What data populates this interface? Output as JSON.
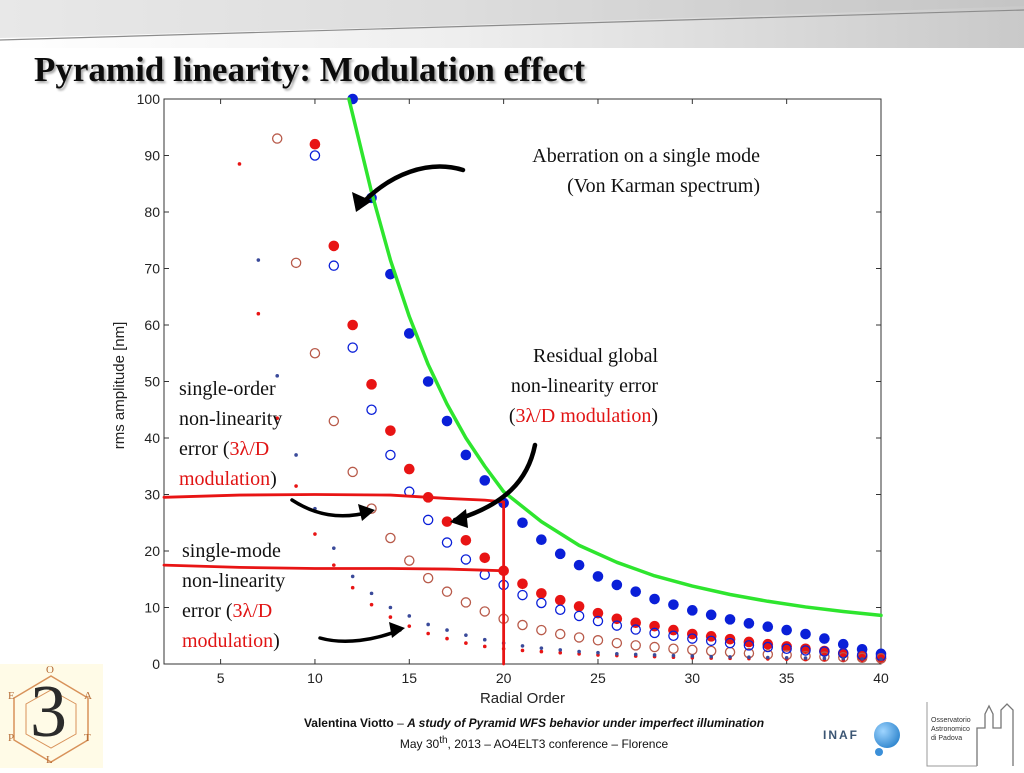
{
  "slide": {
    "title": "Pyramid linearity: Modulation effect"
  },
  "annotations": {
    "top_line1": "Aberration on a single mode",
    "top_line2": "(Von Karman spectrum)",
    "residual_line1": "Residual global",
    "residual_line2": "non-linearity error",
    "residual_open": "(",
    "residual_mod": "3λ/D modulation",
    "residual_close": ")",
    "single_order_line1": "single-order",
    "single_order_line2": "non-linearity",
    "single_order_prefix": "error (",
    "single_order_mod_a": "3λ/D",
    "single_order_mod_b": "modulation",
    "single_order_close": ")",
    "single_mode_line1": "single-mode",
    "single_mode_line2": "non-linearity",
    "single_mode_prefix": "error (",
    "single_mode_mod_a": "3λ/D",
    "single_mode_mod_b": "modulation",
    "single_mode_close": ")"
  },
  "footer": {
    "author": "Valentina Viotto",
    "dash": " – ",
    "talk_title": "A study of Pyramid WFS behavior under imperfect illumination",
    "date_prefix": "May 30",
    "date_sup": "th",
    "date_rest": ", 2013 – AO4ELT3 conference – Florence"
  },
  "logos": {
    "big_numeral": "3",
    "letters": [
      "O",
      "A",
      "L",
      "E",
      "P",
      "T"
    ],
    "inaf": "INAF",
    "observatory_line1": "Osservatorio",
    "observatory_line2": "Astronomico",
    "observatory_line3": "di Padova"
  },
  "colors": {
    "blue": "#0a1fd8",
    "red": "#e81414",
    "brown": "#b85a4a",
    "navy": "#3a4a9a",
    "green": "#2ee52e",
    "axis": "#333333"
  },
  "chart_data": {
    "type": "scatter",
    "xlabel": "Radial Order",
    "ylabel": "rms amplitude [nm]",
    "xlim": [
      2,
      40
    ],
    "ylim": [
      0,
      100
    ],
    "xticks": [
      5,
      10,
      15,
      20,
      25,
      30,
      35,
      40
    ],
    "yticks": [
      0,
      10,
      20,
      30,
      40,
      50,
      60,
      70,
      80,
      90,
      100
    ],
    "grid": false,
    "series": [
      {
        "key": "aberration",
        "style": "filled-large",
        "color": "blue",
        "x": [
          12,
          13,
          14,
          15,
          16,
          17,
          18,
          19,
          20,
          21,
          22,
          23,
          24,
          25,
          26,
          27,
          28,
          29,
          30,
          31,
          32,
          33,
          34,
          35,
          36,
          37,
          38,
          39,
          40
        ],
        "y": [
          100,
          82.5,
          69,
          58.5,
          50,
          43,
          37,
          32.5,
          28.5,
          25,
          22,
          19.5,
          17.5,
          15.5,
          14,
          12.8,
          11.5,
          10.5,
          9.5,
          8.7,
          7.9,
          7.2,
          6.6,
          6,
          5.3,
          4.5,
          3.5,
          2.6,
          1.8
        ]
      },
      {
        "key": "residual_global",
        "style": "filled-large",
        "color": "red",
        "x": [
          10,
          11,
          12,
          13,
          14,
          15,
          16,
          17,
          18,
          19,
          20,
          21,
          22,
          23,
          24,
          25,
          26,
          27,
          28,
          29,
          30,
          31,
          32,
          33,
          34,
          35,
          36,
          37,
          38,
          39,
          40
        ],
        "y": [
          92,
          74,
          60,
          49.5,
          41.3,
          34.5,
          29.5,
          25.2,
          21.9,
          18.8,
          16.5,
          14.2,
          12.5,
          11.3,
          10.2,
          9,
          8,
          7.3,
          6.7,
          6,
          5.3,
          4.9,
          4.4,
          3.9,
          3.5,
          3.1,
          2.7,
          2.3,
          1.9,
          1.4,
          1
        ]
      },
      {
        "key": "single_order",
        "style": "open",
        "color": "brown",
        "x": [
          8,
          9,
          10,
          11,
          12,
          13,
          14,
          15,
          16,
          17,
          18,
          19,
          20,
          21,
          22,
          23,
          24,
          25,
          26,
          27,
          28,
          29,
          30,
          31,
          32,
          33,
          34,
          35,
          36,
          37,
          38,
          39,
          40
        ],
        "y": [
          93,
          71,
          55,
          43,
          34,
          27.5,
          22.3,
          18.3,
          15.2,
          12.8,
          10.9,
          9.3,
          8,
          6.9,
          6,
          5.3,
          4.7,
          4.2,
          3.7,
          3.3,
          3,
          2.7,
          2.5,
          2.3,
          2.1,
          1.9,
          1.7,
          1.6,
          1.4,
          1.3,
          1.2,
          1.1,
          1
        ]
      },
      {
        "key": "single_order_blue",
        "style": "open",
        "color": "blue",
        "x": [
          10,
          11,
          12,
          13,
          14,
          15,
          16,
          17,
          18,
          19,
          20,
          21,
          22,
          23,
          24,
          25,
          26,
          27,
          28,
          29,
          30,
          31,
          32,
          33,
          34,
          35,
          36,
          37,
          38,
          39,
          40
        ],
        "y": [
          90,
          70.5,
          56,
          45,
          37,
          30.5,
          25.5,
          21.5,
          18.5,
          15.8,
          14,
          12.2,
          10.8,
          9.6,
          8.5,
          7.6,
          6.8,
          6.1,
          5.5,
          5,
          4.5,
          4.1,
          3.7,
          3.3,
          3,
          2.7,
          2.4,
          2.2,
          1.9,
          1.6,
          1.4
        ]
      },
      {
        "key": "single_mode_red",
        "style": "dot",
        "color": "red",
        "x": [
          6,
          7,
          8,
          9,
          10,
          11,
          12,
          13,
          14,
          15,
          16,
          17,
          18,
          19,
          20,
          21,
          22,
          23,
          24,
          25,
          26,
          27,
          28,
          29,
          30,
          31,
          32,
          33,
          34,
          35,
          36,
          37,
          38,
          39,
          40
        ],
        "y": [
          88.5,
          62,
          43.5,
          31.5,
          23,
          17.5,
          13.5,
          10.5,
          8.3,
          6.7,
          5.4,
          4.5,
          3.7,
          3.1,
          2.7,
          2.4,
          2.2,
          2,
          1.8,
          1.6,
          1.5,
          1.4,
          1.3,
          1.2,
          1.1,
          1.05,
          1,
          0.95,
          0.9,
          0.85,
          0.8,
          0.75,
          0.7,
          0.65,
          0.6
        ]
      },
      {
        "key": "single_mode_blue",
        "style": "dot",
        "color": "navy",
        "x": [
          7,
          8,
          9,
          10,
          11,
          12,
          13,
          14,
          15,
          16,
          17,
          18,
          19,
          20,
          21,
          22,
          23,
          24,
          25,
          26,
          27,
          28,
          29,
          30,
          31,
          32,
          33,
          34,
          35,
          36,
          37,
          38,
          39,
          40
        ],
        "y": [
          71.5,
          51,
          37,
          27.5,
          20.5,
          15.5,
          12.5,
          10,
          8.5,
          7,
          6,
          5.1,
          4.3,
          3.7,
          3.2,
          2.8,
          2.5,
          2.2,
          2,
          1.8,
          1.7,
          1.6,
          1.5,
          1.4,
          1.3,
          1.25,
          1.2,
          1.15,
          1.1,
          1.05,
          1,
          0.95,
          0.9,
          0.85
        ]
      }
    ],
    "curve": {
      "key": "von_karman_fit",
      "color": "green",
      "x": [
        11.8,
        13,
        14,
        15,
        16,
        17,
        18,
        19,
        20,
        22,
        24,
        26,
        28,
        30,
        32,
        34,
        36,
        38,
        40
      ],
      "y": [
        100,
        83.5,
        71.5,
        61.5,
        53,
        46,
        40,
        35,
        30.5,
        25.2,
        21,
        18,
        15.6,
        13.8,
        12.3,
        11.1,
        10.1,
        9.3,
        8.6
      ]
    },
    "lines": [
      {
        "key": "single_order_red_line",
        "color": "red",
        "x": [
          2,
          6,
          10,
          14,
          17,
          19,
          20
        ],
        "y": [
          29.5,
          29.9,
          30.0,
          29.9,
          29.3,
          29.0,
          28.7
        ]
      },
      {
        "key": "single_mode_red_line",
        "color": "red",
        "x": [
          2,
          6,
          10,
          14,
          17,
          19,
          20
        ],
        "y": [
          17.5,
          17.1,
          16.9,
          16.9,
          16.8,
          16.6,
          16.5
        ]
      },
      {
        "key": "radial_order_20_line",
        "color": "red",
        "x": [
          20,
          20
        ],
        "y": [
          28.7,
          0
        ]
      }
    ]
  }
}
